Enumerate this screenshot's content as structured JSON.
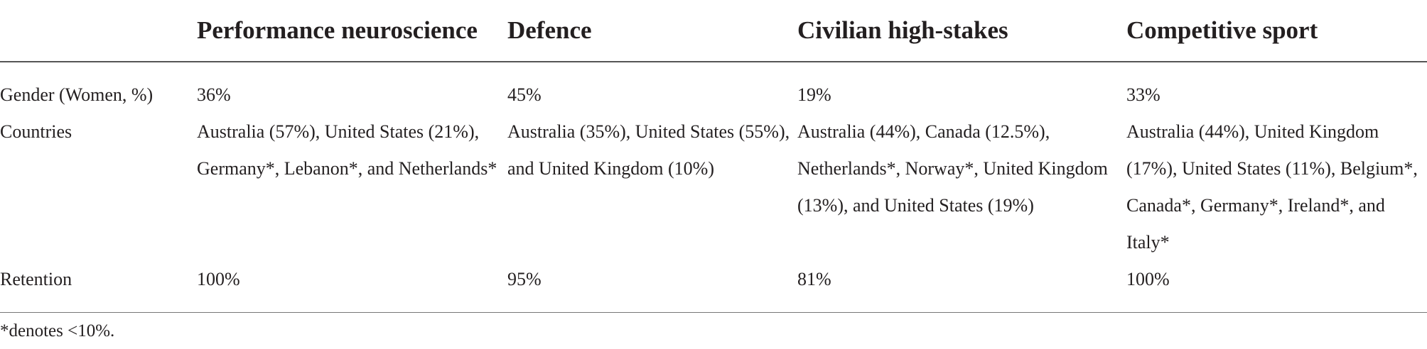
{
  "table": {
    "headers": [
      "",
      "Performance neuroscience",
      "Defence",
      "Civilian high-stakes",
      "Competitive sport"
    ],
    "rows": [
      {
        "label": "Gender (Women, %)",
        "cells": [
          "36%",
          "45%",
          "19%",
          "33%"
        ]
      },
      {
        "label": "Countries",
        "cells": [
          "Australia (57%), United States (21%), Germany*, Lebanon*, and Netherlands*",
          "Australia (35%), United States (55%), and United Kingdom (10%)",
          "Australia (44%), Canada (12.5%), Netherlands*, Norway*, United Kingdom (13%), and United States (19%)",
          "Australia (44%), United Kingdom (17%), United States (11%), Belgium*, Canada*, Germany*, Ireland*, and Italy*"
        ]
      },
      {
        "label": "Retention",
        "cells": [
          "100%",
          "95%",
          "81%",
          "100%"
        ]
      }
    ]
  },
  "footnote": "*denotes <10%."
}
